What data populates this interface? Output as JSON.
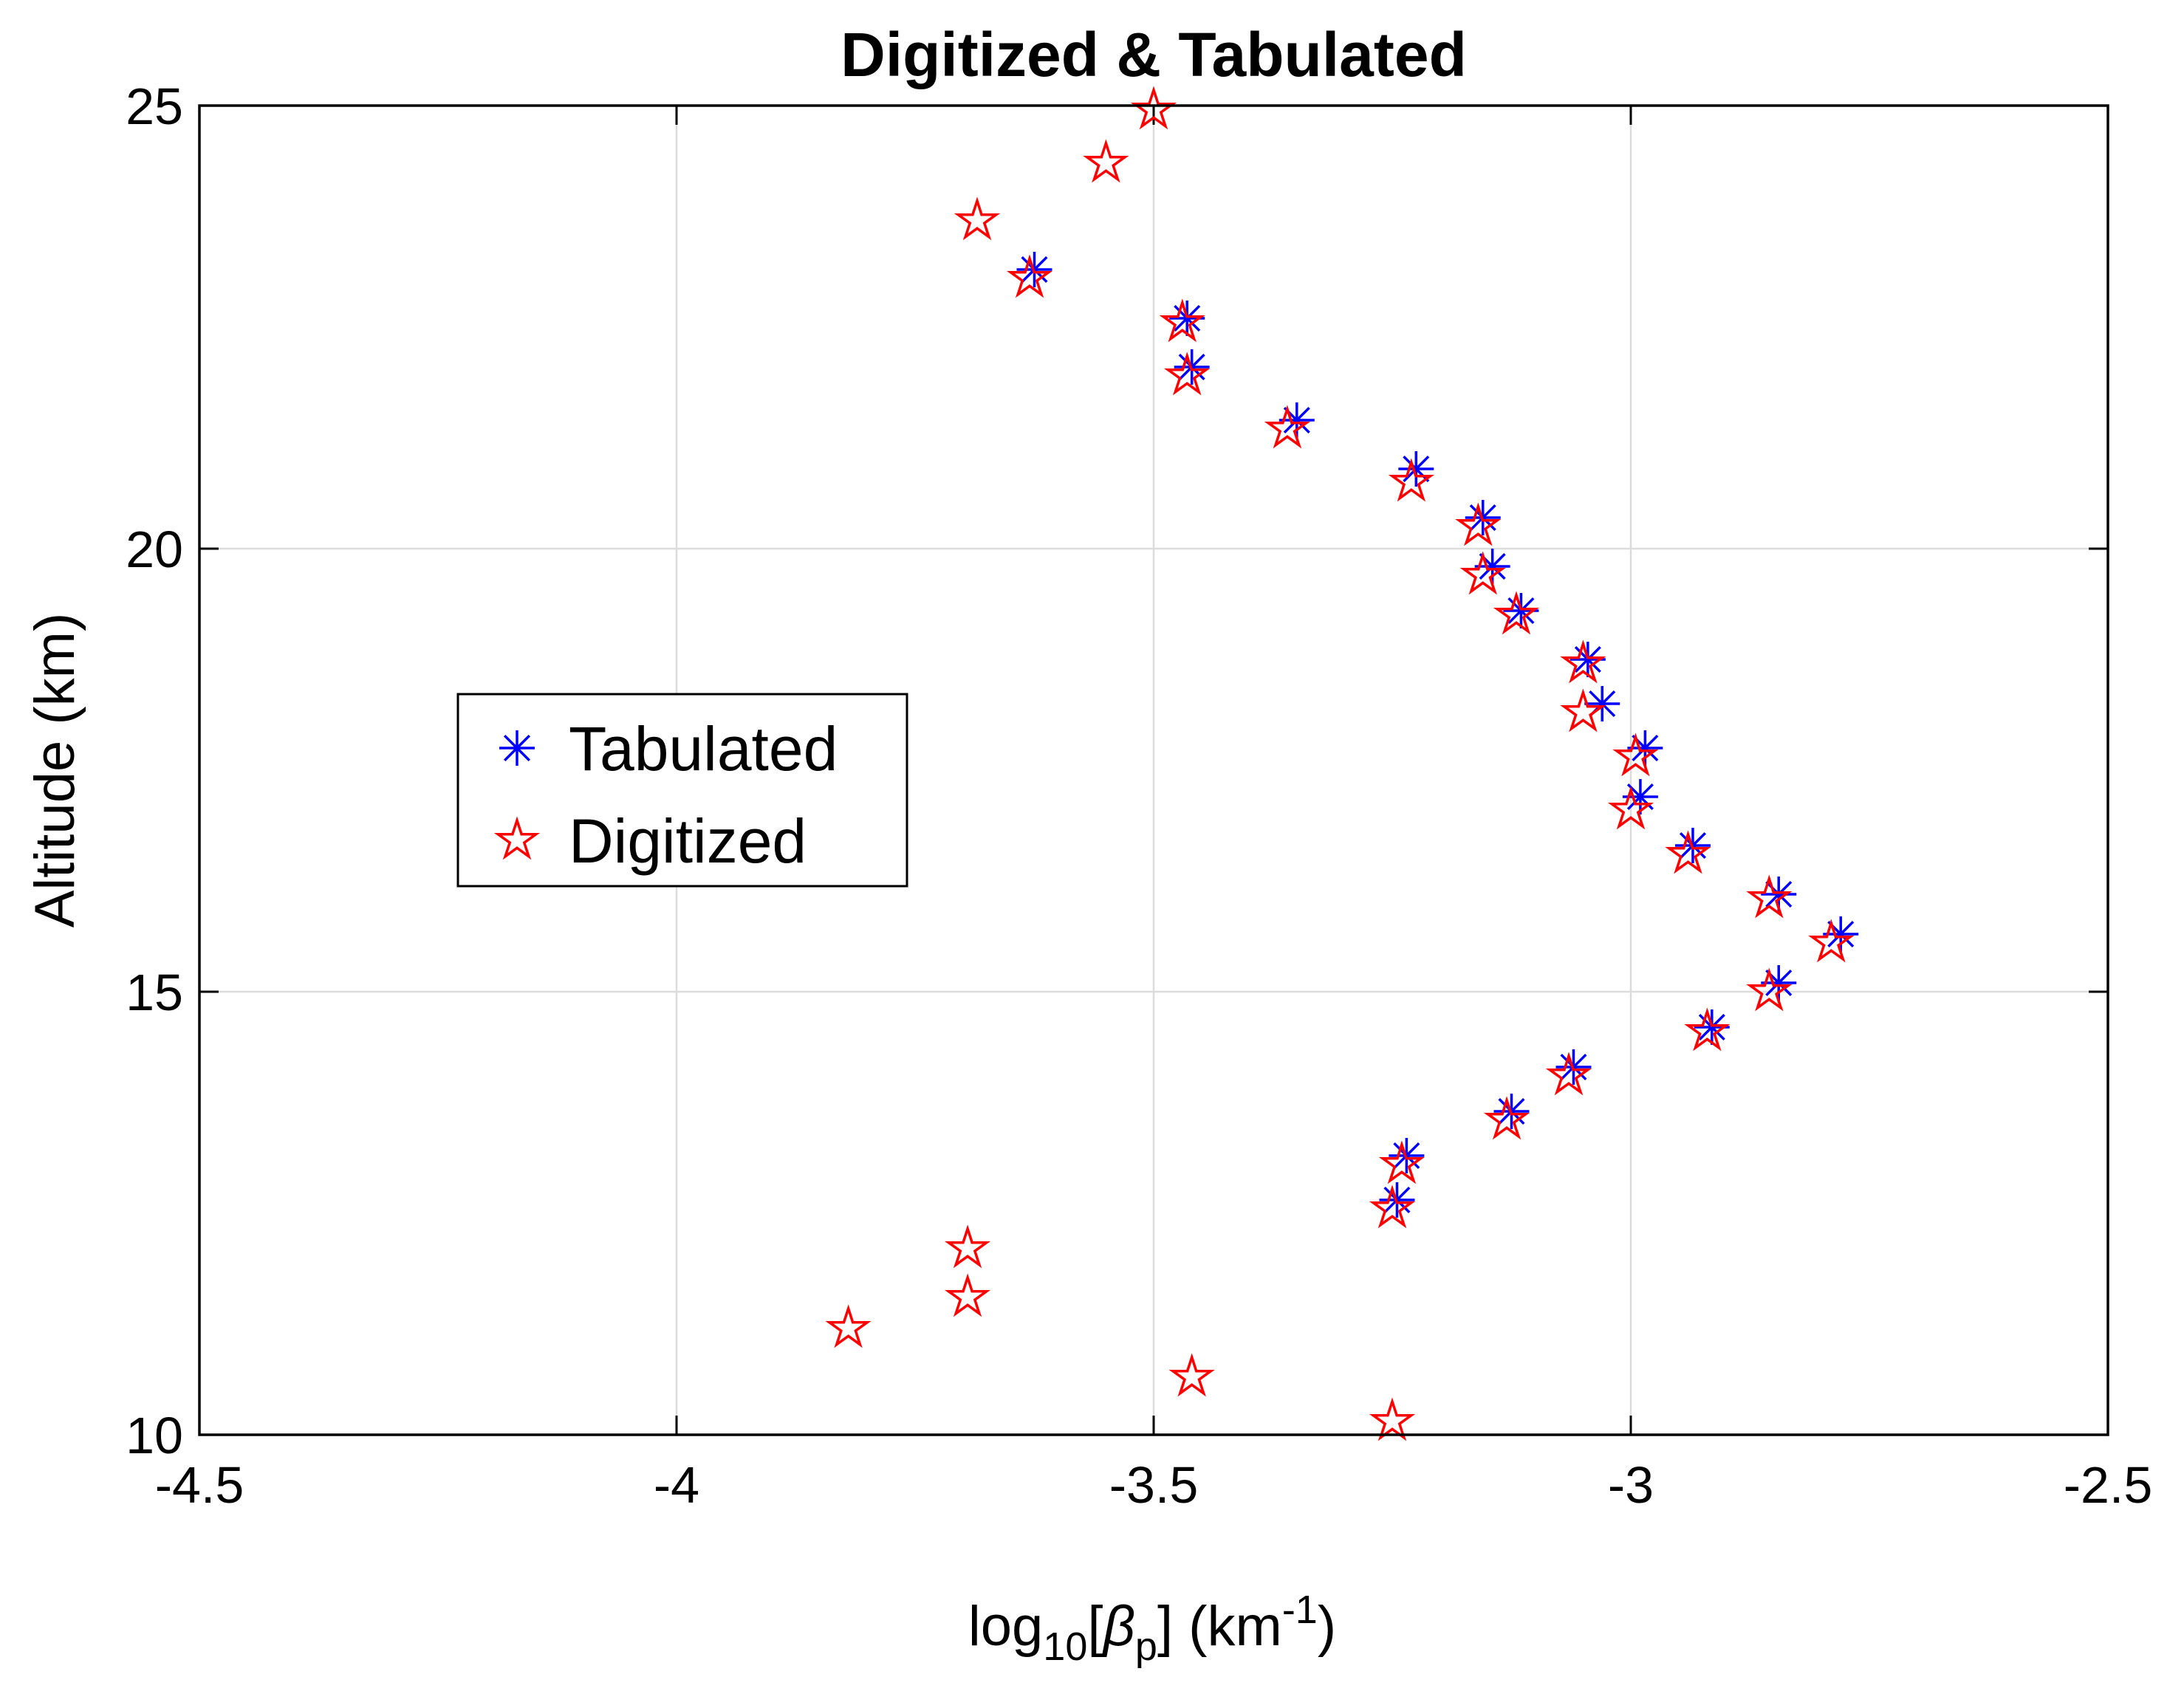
{
  "chart_data": {
    "type": "scatter",
    "title": "Digitized & Tabulated",
    "xlabel": {
      "base": "log",
      "sub10": "10",
      "open": "[",
      "beta": "β",
      "subp": "p",
      "close": "] (km",
      "sup": "-1",
      "end": ")"
    },
    "ylabel": "Altitude (km)",
    "xlim": [
      -4.5,
      -2.5
    ],
    "ylim": [
      10,
      25
    ],
    "xticks": [
      -4.5,
      -4,
      -3.5,
      -3,
      -2.5
    ],
    "xtick_labels": [
      "-4.5",
      "-4",
      "-3.5",
      "-3",
      "-2.5"
    ],
    "yticks": [
      10,
      15,
      20,
      25
    ],
    "ytick_labels": [
      "10",
      "15",
      "20",
      "25"
    ],
    "grid": true,
    "legend_position": "center-left",
    "series": [
      {
        "name": "Tabulated",
        "marker": "asterisk",
        "color": "#0000ff",
        "points": [
          [
            -3.625,
            23.15
          ],
          [
            -3.465,
            22.6
          ],
          [
            -3.46,
            22.05
          ],
          [
            -3.35,
            21.45
          ],
          [
            -3.225,
            20.9
          ],
          [
            -3.155,
            20.35
          ],
          [
            -3.145,
            19.8
          ],
          [
            -3.115,
            19.3
          ],
          [
            -3.045,
            18.75
          ],
          [
            -3.03,
            18.25
          ],
          [
            -2.985,
            17.75
          ],
          [
            -2.99,
            17.2
          ],
          [
            -2.935,
            16.65
          ],
          [
            -2.845,
            16.1
          ],
          [
            -2.78,
            15.65
          ],
          [
            -2.845,
            15.1
          ],
          [
            -2.915,
            14.6
          ],
          [
            -3.06,
            14.15
          ],
          [
            -3.125,
            13.65
          ],
          [
            -3.235,
            13.15
          ],
          [
            -3.245,
            12.65
          ]
        ]
      },
      {
        "name": "Digitized",
        "marker": "pentagram",
        "color": "#ff0000",
        "points": [
          [
            -3.5,
            24.95
          ],
          [
            -3.55,
            24.35
          ],
          [
            -3.685,
            23.7
          ],
          [
            -3.63,
            23.05
          ],
          [
            -3.47,
            22.55
          ],
          [
            -3.465,
            21.95
          ],
          [
            -3.36,
            21.35
          ],
          [
            -3.23,
            20.75
          ],
          [
            -3.16,
            20.25
          ],
          [
            -3.155,
            19.7
          ],
          [
            -3.12,
            19.25
          ],
          [
            -3.05,
            18.7
          ],
          [
            -3.05,
            18.15
          ],
          [
            -2.995,
            17.65
          ],
          [
            -3.0,
            17.05
          ],
          [
            -2.94,
            16.55
          ],
          [
            -2.855,
            16.05
          ],
          [
            -2.79,
            15.55
          ],
          [
            -2.855,
            15.0
          ],
          [
            -2.92,
            14.55
          ],
          [
            -3.065,
            14.05
          ],
          [
            -3.13,
            13.55
          ],
          [
            -3.24,
            13.05
          ],
          [
            -3.25,
            12.55
          ],
          [
            -3.695,
            12.1
          ],
          [
            -3.695,
            11.55
          ],
          [
            -3.82,
            11.2
          ],
          [
            -3.46,
            10.65
          ],
          [
            -3.25,
            10.15
          ]
        ]
      }
    ]
  }
}
